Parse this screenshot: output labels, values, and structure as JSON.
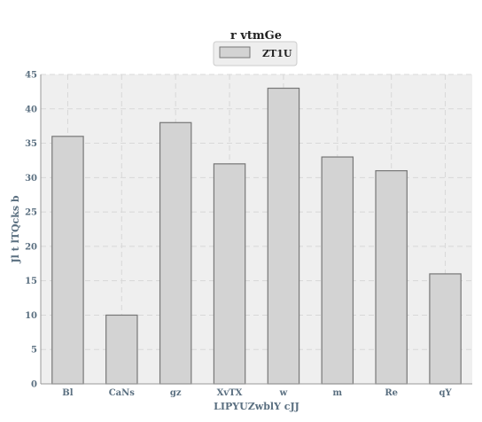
{
  "chart_data": {
    "type": "bar",
    "title": "r vtmGe",
    "xlabel": "LIPYUZwblY cJJ",
    "ylabel": "Jl t lTQcks b",
    "categories": [
      "Bl",
      "CaNs",
      "gz",
      "XvTX",
      "w",
      "m",
      "Re",
      "qY"
    ],
    "series": [
      {
        "name": "ZT1U",
        "values": [
          36,
          10,
          38,
          32,
          43,
          33,
          31,
          16
        ]
      }
    ],
    "ylim": [
      0,
      45
    ],
    "yticks": [
      0,
      5,
      10,
      15,
      20,
      25,
      30,
      35,
      40,
      45
    ],
    "grid": true,
    "legend_position": "top-center",
    "colors": {
      "bar_fill": "#d3d3d3",
      "bar_stroke": "#777777",
      "plot_background": "#efefef",
      "grid": "#d8d8d8",
      "axis_text": "#5a6f80"
    }
  }
}
